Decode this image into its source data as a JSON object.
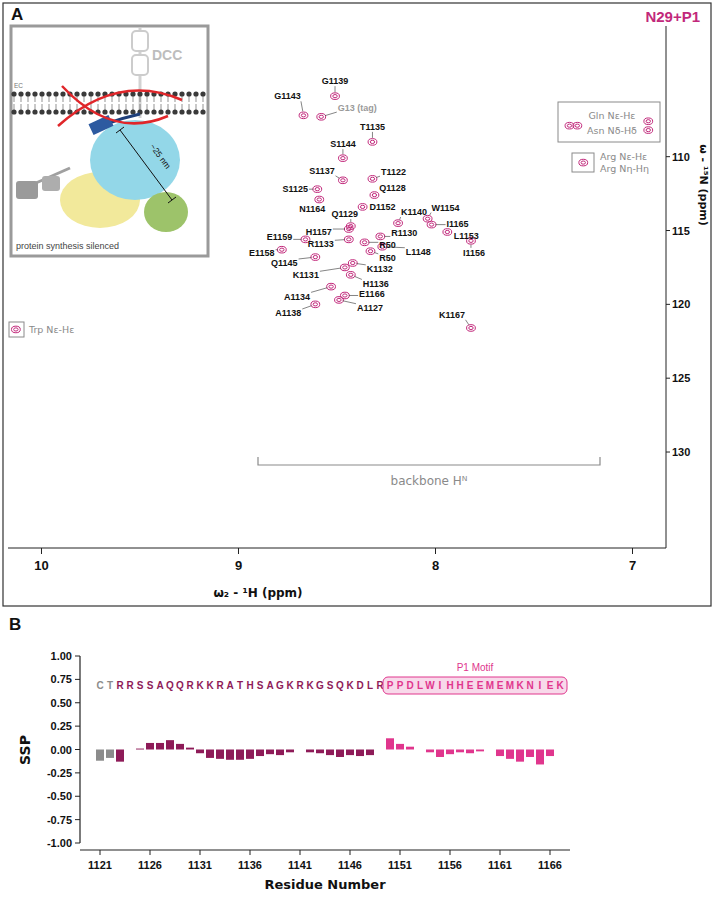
{
  "chart_data": [
    {
      "type": "scatter",
      "panel": "A",
      "title": "N29+P1",
      "xlabel": "ω₂ - ¹H (ppm)",
      "ylabel": "ω - ¹⁵N (ppm)",
      "xlim": [
        10.17,
        6.83
      ],
      "ylim": [
        136.5,
        101.15
      ],
      "xticks": [
        10,
        9,
        8,
        7
      ],
      "yticks": [
        110,
        115,
        120,
        125,
        130
      ],
      "color": "#c2287b",
      "marker": "contour",
      "x": [
        8.51,
        8.67,
        8.58,
        8.32,
        8.47,
        8.47,
        8.32,
        8.6,
        8.31,
        8.59,
        8.37,
        8.43,
        8.19,
        8.04,
        8.02,
        7.94,
        7.82,
        8.44,
        8.66,
        8.78,
        8.44,
        8.28,
        8.36,
        8.33,
        8.27,
        8.61,
        8.46,
        8.42,
        8.43,
        8.53,
        8.46,
        8.49,
        8.61,
        7.82,
        10.13,
        7.32,
        7.28,
        6.92,
        6.92,
        7.25
      ],
      "y": [
        105.9,
        107.2,
        107.3,
        109.0,
        110.1,
        111.6,
        111.5,
        112.2,
        112.6,
        112.9,
        113.4,
        114.7,
        114.5,
        114.2,
        114.6,
        115.1,
        115.7,
        114.9,
        115.6,
        116.3,
        115.6,
        115.4,
        115.8,
        116.4,
        116.1,
        116.8,
        117.5,
        117.2,
        118.0,
        118.8,
        119.4,
        119.7,
        120.0,
        121.6,
        121.7,
        107.9,
        107.9,
        107.6,
        108.2,
        110.4
      ],
      "labels": [
        "G1139",
        "G1143",
        "G13 (tag)",
        "T1135",
        "S1144",
        "S1137",
        "T1122",
        "S1125",
        "Q1128",
        "N1164",
        "D1152",
        "Q1129",
        "K1140",
        "W1154",
        "I1165",
        "L1153",
        "I1156",
        "H1157",
        "E1159",
        "E1158",
        "R1133",
        "R1130",
        "R50",
        "R50",
        "L1148",
        "Q1145",
        "K1131",
        "K1132",
        "H1136",
        "A1134",
        "E1166",
        "A1127",
        "A1138",
        "K1167",
        null,
        null,
        null,
        null,
        null,
        null
      ],
      "annotations": {
        "backbone": "backbone Hᴺ",
        "gln": "Gln Nε-Hε",
        "asn": "Asn Nδ-Hδ",
        "arg_epsilon": "Arg Nε-Hε",
        "arg_eta": "Arg Nη-Hη",
        "trp": "Trp Nε-Hε"
      },
      "inset": {
        "receptor": "DCC",
        "region": "EC",
        "distance": "~25 nm",
        "caption": "protein synthesis silenced"
      }
    },
    {
      "type": "bar",
      "panel": "B",
      "xlabel": "Residue Number",
      "ylabel": "SSP",
      "x": [
        1121,
        1122,
        1123,
        1124,
        1125,
        1126,
        1127,
        1128,
        1129,
        1130,
        1131,
        1132,
        1133,
        1134,
        1135,
        1136,
        1137,
        1138,
        1139,
        1140,
        1141,
        1142,
        1143,
        1144,
        1145,
        1146,
        1147,
        1148,
        1149,
        1150,
        1151,
        1152,
        1153,
        1154,
        1155,
        1156,
        1157,
        1158,
        1159,
        1160,
        1161,
        1162,
        1163,
        1164,
        1165,
        1166
      ],
      "values": [
        -0.12,
        -0.09,
        -0.13,
        0.0,
        0.01,
        0.07,
        0.07,
        0.1,
        0.06,
        0.02,
        -0.04,
        -0.09,
        -0.1,
        -0.11,
        -0.11,
        -0.1,
        -0.07,
        -0.05,
        -0.06,
        -0.03,
        0.0,
        -0.03,
        -0.04,
        -0.06,
        -0.08,
        -0.06,
        -0.07,
        -0.06,
        0.0,
        0.12,
        0.06,
        0.03,
        0.0,
        -0.03,
        -0.08,
        -0.05,
        -0.03,
        -0.04,
        -0.02,
        0.0,
        -0.07,
        -0.1,
        -0.13,
        -0.08,
        -0.16,
        -0.07
      ],
      "colors": [
        "#8c8c8c",
        "#8c8c8c",
        "#8e1b58",
        "#8e1b58",
        "#8e1b58",
        "#8e1b58",
        "#8e1b58",
        "#8e1b58",
        "#8e1b58",
        "#8e1b58",
        "#8e1b58",
        "#8e1b58",
        "#8e1b58",
        "#8e1b58",
        "#8e1b58",
        "#8e1b58",
        "#8e1b58",
        "#8e1b58",
        "#8e1b58",
        "#8e1b58",
        "#8e1b58",
        "#8e1b58",
        "#8e1b58",
        "#8e1b58",
        "#8e1b58",
        "#8e1b58",
        "#8e1b58",
        "#8e1b58",
        "#8e1b58",
        "#e0368d",
        "#e0368d",
        "#e0368d",
        "#e0368d",
        "#e0368d",
        "#e0368d",
        "#e0368d",
        "#e0368d",
        "#e0368d",
        "#e0368d",
        "#e0368d",
        "#e0368d",
        "#e0368d",
        "#e0368d",
        "#e0368d",
        "#e0368d",
        "#e0368d"
      ],
      "xlim": [
        1119,
        1168
      ],
      "ylim": [
        -1,
        1
      ],
      "xticks": [
        1121,
        1126,
        1131,
        1136,
        1141,
        1146,
        1151,
        1156,
        1161,
        1166
      ],
      "yticks": [
        {
          "value": -1,
          "label": "-1.00"
        },
        {
          "value": -0.75,
          "label": "-0.75"
        },
        {
          "value": -0.5,
          "label": "-0.50"
        },
        {
          "value": -0.25,
          "label": "-0.25"
        },
        {
          "value": 0,
          "label": "0.00"
        },
        {
          "value": 0.25,
          "label": "0.25"
        },
        {
          "value": 0.5,
          "label": "0.50"
        },
        {
          "value": 0.75,
          "label": "0.75"
        },
        {
          "value": 1,
          "label": "1.00"
        }
      ],
      "sequence": [
        {
          "text": "CT",
          "color": "#8c8c8c"
        },
        {
          "text": "RRSSAQQRKKRATHSAGKRKGSQKDLR",
          "color": "#8e1b58"
        },
        {
          "text": "PPDLWIHHEEMEMKNIEK",
          "color": "#e0368d",
          "motif": "P1 Motif"
        }
      ]
    }
  ]
}
